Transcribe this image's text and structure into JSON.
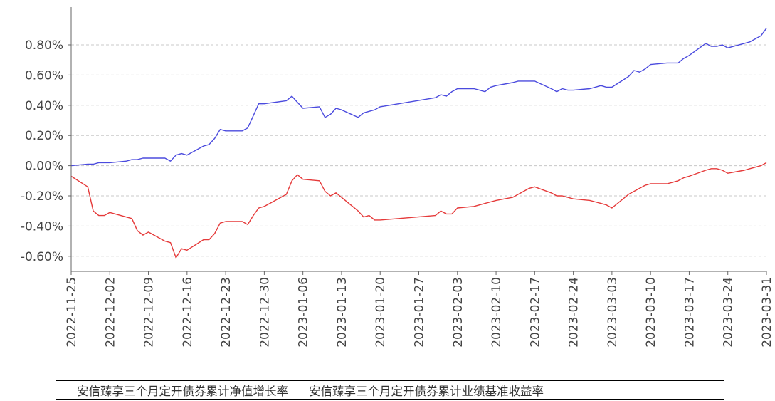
{
  "chart_data": {
    "type": "line",
    "title": "",
    "xlabel": "",
    "ylabel": "",
    "ylim": [
      -0.007,
      0.0105
    ],
    "y_ticks": [
      "0.80%",
      "0.60%",
      "0.40%",
      "0.20%",
      "0.00%",
      "-0.20%",
      "-0.40%",
      "-0.60%"
    ],
    "y_tick_values": [
      0.008,
      0.006,
      0.004,
      0.002,
      0.0,
      -0.002,
      -0.004,
      -0.006
    ],
    "x_ticks": [
      "2022-11-25",
      "2022-12-02",
      "2022-12-09",
      "2022-12-16",
      "2022-12-23",
      "2022-12-30",
      "2023-01-06",
      "2023-01-13",
      "2023-01-20",
      "2023-01-27",
      "2023-02-03",
      "2023-02-10",
      "2023-02-17",
      "2023-02-24",
      "2023-03-03",
      "2023-03-10",
      "2023-03-17",
      "2023-03-24",
      "2023-03-31"
    ],
    "grid": true,
    "legend_placement": "bottom",
    "colors": {
      "series_1": "#4b4bde",
      "series_2": "#e53a3a",
      "grid": "#c8c8c8"
    },
    "series": [
      {
        "name": "安信臻享三个月定开债券累计净值增长率",
        "color": "#4b4bde",
        "points": [
          [
            "2022-11-25",
            0.0
          ],
          [
            "2022-11-28",
            0.0001
          ],
          [
            "2022-11-29",
            0.0001
          ],
          [
            "2022-11-30",
            0.0002
          ],
          [
            "2022-12-01",
            0.0002
          ],
          [
            "2022-12-02",
            0.0002
          ],
          [
            "2022-12-05",
            0.0003
          ],
          [
            "2022-12-06",
            0.0004
          ],
          [
            "2022-12-07",
            0.0004
          ],
          [
            "2022-12-08",
            0.0005
          ],
          [
            "2022-12-09",
            0.0005
          ],
          [
            "2022-12-12",
            0.0005
          ],
          [
            "2022-12-13",
            0.0003
          ],
          [
            "2022-12-14",
            0.0007
          ],
          [
            "2022-12-15",
            0.0008
          ],
          [
            "2022-12-16",
            0.0007
          ],
          [
            "2022-12-19",
            0.0013
          ],
          [
            "2022-12-20",
            0.0014
          ],
          [
            "2022-12-21",
            0.0018
          ],
          [
            "2022-12-22",
            0.0024
          ],
          [
            "2022-12-23",
            0.0023
          ],
          [
            "2022-12-26",
            0.0023
          ],
          [
            "2022-12-27",
            0.0025
          ],
          [
            "2022-12-28",
            0.0033
          ],
          [
            "2022-12-29",
            0.0041
          ],
          [
            "2022-12-30",
            0.0041
          ],
          [
            "2023-01-03",
            0.0043
          ],
          [
            "2023-01-04",
            0.0046
          ],
          [
            "2023-01-05",
            0.0042
          ],
          [
            "2023-01-06",
            0.0038
          ],
          [
            "2023-01-09",
            0.0039
          ],
          [
            "2023-01-10",
            0.0032
          ],
          [
            "2023-01-11",
            0.0034
          ],
          [
            "2023-01-12",
            0.0038
          ],
          [
            "2023-01-13",
            0.0037
          ],
          [
            "2023-01-16",
            0.0032
          ],
          [
            "2023-01-17",
            0.0035
          ],
          [
            "2023-01-18",
            0.0036
          ],
          [
            "2023-01-19",
            0.0037
          ],
          [
            "2023-01-20",
            0.0039
          ],
          [
            "2023-01-30",
            0.0045
          ],
          [
            "2023-01-31",
            0.0047
          ],
          [
            "2023-02-01",
            0.0046
          ],
          [
            "2023-02-02",
            0.0049
          ],
          [
            "2023-02-03",
            0.0051
          ],
          [
            "2023-02-06",
            0.0051
          ],
          [
            "2023-02-07",
            0.005
          ],
          [
            "2023-02-08",
            0.0049
          ],
          [
            "2023-02-09",
            0.0052
          ],
          [
            "2023-02-10",
            0.0053
          ],
          [
            "2023-02-13",
            0.0055
          ],
          [
            "2023-02-14",
            0.0056
          ],
          [
            "2023-02-15",
            0.0056
          ],
          [
            "2023-02-16",
            0.0056
          ],
          [
            "2023-02-17",
            0.0056
          ],
          [
            "2023-02-20",
            0.0051
          ],
          [
            "2023-02-21",
            0.0049
          ],
          [
            "2023-02-22",
            0.0051
          ],
          [
            "2023-02-23",
            0.005
          ],
          [
            "2023-02-24",
            0.005
          ],
          [
            "2023-02-27",
            0.0051
          ],
          [
            "2023-02-28",
            0.0052
          ],
          [
            "2023-03-01",
            0.0053
          ],
          [
            "2023-03-02",
            0.0052
          ],
          [
            "2023-03-03",
            0.0052
          ],
          [
            "2023-03-06",
            0.0059
          ],
          [
            "2023-03-07",
            0.0063
          ],
          [
            "2023-03-08",
            0.0062
          ],
          [
            "2023-03-09",
            0.0064
          ],
          [
            "2023-03-10",
            0.0067
          ],
          [
            "2023-03-13",
            0.0068
          ],
          [
            "2023-03-14",
            0.0068
          ],
          [
            "2023-03-15",
            0.0068
          ],
          [
            "2023-03-16",
            0.0071
          ],
          [
            "2023-03-17",
            0.0073
          ],
          [
            "2023-03-20",
            0.0081
          ],
          [
            "2023-03-21",
            0.0079
          ],
          [
            "2023-03-22",
            0.0079
          ],
          [
            "2023-03-23",
            0.008
          ],
          [
            "2023-03-24",
            0.0078
          ],
          [
            "2023-03-27",
            0.0081
          ],
          [
            "2023-03-28",
            0.0082
          ],
          [
            "2023-03-29",
            0.0084
          ],
          [
            "2023-03-30",
            0.0086
          ],
          [
            "2023-03-31",
            0.0091
          ]
        ]
      },
      {
        "name": "安信臻享三个月定开债券累计业绩基准收益率",
        "color": "#e53a3a",
        "points": [
          [
            "2022-11-25",
            -0.0007
          ],
          [
            "2022-11-28",
            -0.0014
          ],
          [
            "2022-11-29",
            -0.003
          ],
          [
            "2022-11-30",
            -0.0033
          ],
          [
            "2022-12-01",
            -0.0033
          ],
          [
            "2022-12-02",
            -0.0031
          ],
          [
            "2022-12-05",
            -0.0034
          ],
          [
            "2022-12-06",
            -0.0035
          ],
          [
            "2022-12-07",
            -0.0043
          ],
          [
            "2022-12-08",
            -0.0046
          ],
          [
            "2022-12-09",
            -0.0044
          ],
          [
            "2022-12-12",
            -0.005
          ],
          [
            "2022-12-13",
            -0.0051
          ],
          [
            "2022-12-14",
            -0.0061
          ],
          [
            "2022-12-15",
            -0.0055
          ],
          [
            "2022-12-16",
            -0.0056
          ],
          [
            "2022-12-19",
            -0.0049
          ],
          [
            "2022-12-20",
            -0.0049
          ],
          [
            "2022-12-21",
            -0.0045
          ],
          [
            "2022-12-22",
            -0.0038
          ],
          [
            "2022-12-23",
            -0.0037
          ],
          [
            "2022-12-26",
            -0.0037
          ],
          [
            "2022-12-27",
            -0.0039
          ],
          [
            "2022-12-28",
            -0.0033
          ],
          [
            "2022-12-29",
            -0.0028
          ],
          [
            "2022-12-30",
            -0.0027
          ],
          [
            "2023-01-03",
            -0.0019
          ],
          [
            "2023-01-04",
            -0.001
          ],
          [
            "2023-01-05",
            -0.0006
          ],
          [
            "2023-01-06",
            -0.0009
          ],
          [
            "2023-01-09",
            -0.001
          ],
          [
            "2023-01-10",
            -0.0017
          ],
          [
            "2023-01-11",
            -0.002
          ],
          [
            "2023-01-12",
            -0.0018
          ],
          [
            "2023-01-13",
            -0.0021
          ],
          [
            "2023-01-16",
            -0.003
          ],
          [
            "2023-01-17",
            -0.0034
          ],
          [
            "2023-01-18",
            -0.0033
          ],
          [
            "2023-01-19",
            -0.0036
          ],
          [
            "2023-01-20",
            -0.0036
          ],
          [
            "2023-01-30",
            -0.0033
          ],
          [
            "2023-01-31",
            -0.003
          ],
          [
            "2023-02-01",
            -0.0032
          ],
          [
            "2023-02-02",
            -0.0032
          ],
          [
            "2023-02-03",
            -0.0028
          ],
          [
            "2023-02-06",
            -0.0027
          ],
          [
            "2023-02-07",
            -0.0026
          ],
          [
            "2023-02-08",
            -0.0025
          ],
          [
            "2023-02-09",
            -0.0024
          ],
          [
            "2023-02-10",
            -0.0023
          ],
          [
            "2023-02-13",
            -0.0021
          ],
          [
            "2023-02-14",
            -0.0019
          ],
          [
            "2023-02-15",
            -0.0017
          ],
          [
            "2023-02-16",
            -0.0015
          ],
          [
            "2023-02-17",
            -0.0014
          ],
          [
            "2023-02-20",
            -0.0018
          ],
          [
            "2023-02-21",
            -0.002
          ],
          [
            "2023-02-22",
            -0.002
          ],
          [
            "2023-02-23",
            -0.0021
          ],
          [
            "2023-02-24",
            -0.0022
          ],
          [
            "2023-02-27",
            -0.0023
          ],
          [
            "2023-02-28",
            -0.0024
          ],
          [
            "2023-03-01",
            -0.0025
          ],
          [
            "2023-03-02",
            -0.0026
          ],
          [
            "2023-03-03",
            -0.0028
          ],
          [
            "2023-03-06",
            -0.0019
          ],
          [
            "2023-03-07",
            -0.0017
          ],
          [
            "2023-03-08",
            -0.0015
          ],
          [
            "2023-03-09",
            -0.0013
          ],
          [
            "2023-03-10",
            -0.0012
          ],
          [
            "2023-03-13",
            -0.0012
          ],
          [
            "2023-03-14",
            -0.0011
          ],
          [
            "2023-03-15",
            -0.001
          ],
          [
            "2023-03-16",
            -0.0008
          ],
          [
            "2023-03-17",
            -0.0007
          ],
          [
            "2023-03-20",
            -0.0003
          ],
          [
            "2023-03-21",
            -0.0002
          ],
          [
            "2023-03-22",
            -0.0002
          ],
          [
            "2023-03-23",
            -0.0003
          ],
          [
            "2023-03-24",
            -0.0005
          ],
          [
            "2023-03-27",
            -0.0003
          ],
          [
            "2023-03-28",
            -0.0002
          ],
          [
            "2023-03-29",
            -0.0001
          ],
          [
            "2023-03-30",
            0.0
          ],
          [
            "2023-03-31",
            0.0002
          ]
        ]
      }
    ]
  }
}
